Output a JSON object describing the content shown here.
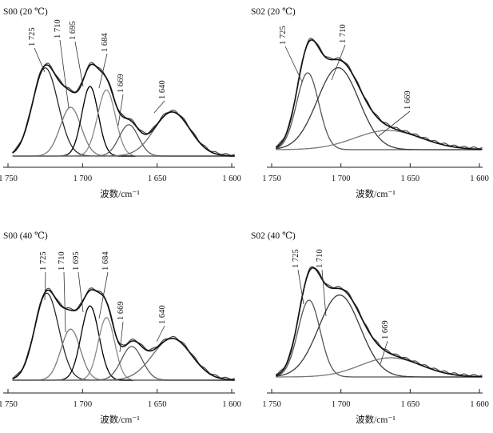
{
  "chart_data": [
    {
      "type": "line",
      "title": "S00 (20 ℃)",
      "xlabel": "波数/cm⁻¹",
      "xlim": [
        1750,
        1600
      ],
      "x_reversed": true,
      "xticks": [
        1750,
        1700,
        1650,
        1600
      ],
      "xtick_labels": [
        "1 750",
        "1 700",
        "1 650",
        "1 600"
      ],
      "peak_labels": [
        "1 725",
        "1 710",
        "1 695",
        "1 684",
        "1 669",
        "1 640"
      ],
      "components": [
        {
          "center": 1725,
          "height": 0.76,
          "width": 8.5,
          "color": "#2a2a2a"
        },
        {
          "center": 1708,
          "height": 0.42,
          "width": 7.0,
          "color": "#7a7a7a"
        },
        {
          "center": 1695,
          "height": 0.6,
          "width": 5.5,
          "color": "#000000"
        },
        {
          "center": 1684,
          "height": 0.57,
          "width": 6.0,
          "color": "#8a8a8a"
        },
        {
          "center": 1669,
          "height": 0.27,
          "width": 6.5,
          "color": "#5a5a5a"
        },
        {
          "center": 1640,
          "height": 0.38,
          "width": 12.0,
          "color": "#6a6a6a"
        }
      ],
      "range": [
        1747,
        1598
      ]
    },
    {
      "type": "line",
      "title": "S02 (20 ℃)",
      "xlabel": "波数/cm⁻¹",
      "xlim": [
        1750,
        1600
      ],
      "x_reversed": true,
      "xticks": [
        1750,
        1700,
        1650,
        1600
      ],
      "xtick_labels": [
        "1 750",
        "1 700",
        "1 650",
        "1 600"
      ],
      "peak_labels": [
        "1 725",
        "1 710",
        "1 669"
      ],
      "components": [
        {
          "center": 1724,
          "height": 0.6,
          "width": 8.0,
          "color": "#555555"
        },
        {
          "center": 1702,
          "height": 0.64,
          "width": 15.0,
          "color": "#3a3a3a"
        },
        {
          "center": 1666,
          "height": 0.15,
          "width": 24.0,
          "color": "#777777"
        }
      ],
      "range": [
        1747,
        1598
      ]
    },
    {
      "type": "line",
      "title": "S00 (40 ℃)",
      "xlabel": "波数/cm⁻¹",
      "xlim": [
        1750,
        1600
      ],
      "x_reversed": true,
      "xticks": [
        1750,
        1700,
        1650,
        1600
      ],
      "xtick_labels": [
        "1 750",
        "1 700",
        "1 650",
        "1 600"
      ],
      "peak_labels": [
        "1 725",
        "1 710",
        "1 695",
        "1 684",
        "1 669",
        "1 640"
      ],
      "components": [
        {
          "center": 1724,
          "height": 0.75,
          "width": 8.0,
          "color": "#2a2a2a"
        },
        {
          "center": 1708,
          "height": 0.44,
          "width": 6.5,
          "color": "#7a7a7a"
        },
        {
          "center": 1695,
          "height": 0.64,
          "width": 6.0,
          "color": "#000000"
        },
        {
          "center": 1684,
          "height": 0.54,
          "width": 5.5,
          "color": "#8a8a8a"
        },
        {
          "center": 1667,
          "height": 0.29,
          "width": 7.0,
          "color": "#5a5a5a"
        },
        {
          "center": 1640,
          "height": 0.36,
          "width": 13.0,
          "color": "#6a6a6a"
        }
      ],
      "range": [
        1747,
        1598
      ]
    },
    {
      "type": "line",
      "title": "S02 (40 ℃)",
      "xlabel": "波数/cm⁻¹",
      "xlim": [
        1750,
        1600
      ],
      "x_reversed": true,
      "xticks": [
        1750,
        1700,
        1650,
        1600
      ],
      "xtick_labels": [
        "1 750",
        "1 700",
        "1 650",
        "1 600"
      ],
      "peak_labels": [
        "1 725",
        "1 710",
        "1 669"
      ],
      "components": [
        {
          "center": 1723,
          "height": 0.6,
          "width": 8.0,
          "color": "#555555"
        },
        {
          "center": 1701,
          "height": 0.64,
          "width": 15.0,
          "color": "#3a3a3a"
        },
        {
          "center": 1664,
          "height": 0.15,
          "width": 22.0,
          "color": "#777777"
        }
      ],
      "range": [
        1747,
        1598
      ]
    }
  ]
}
